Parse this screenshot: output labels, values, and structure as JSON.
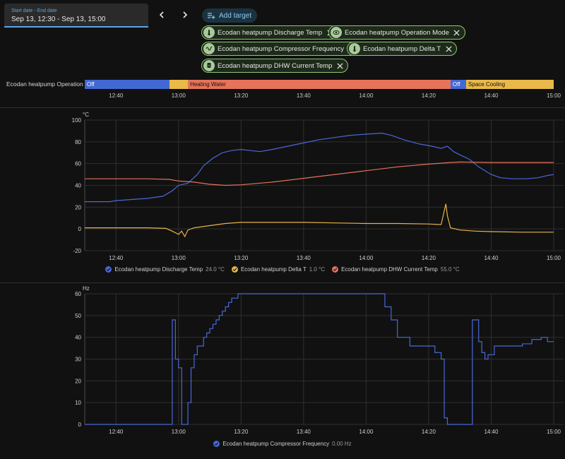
{
  "date_picker": {
    "label": "Start date - End date",
    "value": "Sep 13, 12:30 - Sep 13, 15:00"
  },
  "toolbar": {
    "add_target_label": "Add target"
  },
  "targets": [
    {
      "label": "Ecodan heatpump Discharge Temp",
      "icon": "thermometer-icon"
    },
    {
      "label": "Ecodan heatpump Operation Mode",
      "icon": "eye-icon"
    },
    {
      "label": "Ecodan heatpump Compressor Frequency",
      "icon": "sine-wave-icon"
    },
    {
      "label": "Ecodan heatpump Delta T",
      "icon": "thermometer-icon"
    },
    {
      "label": "Ecodan heatpump DHW Current Temp",
      "icon": "water-boiler-icon"
    }
  ],
  "timeline": {
    "entity": "Ecodan heatpump Operation Mo...",
    "segments": [
      {
        "label": "Off",
        "start": "12:30",
        "end": "12:57",
        "color": "#4268d4"
      },
      {
        "label": "",
        "start": "12:57",
        "end": "13:03",
        "color": "#e9b949"
      },
      {
        "label": "Heating Water",
        "start": "13:03",
        "end": "14:27",
        "color": "#e6735a"
      },
      {
        "label": "Off",
        "start": "14:27",
        "end": "14:32",
        "color": "#4268d4"
      },
      {
        "label": "Space Cooling",
        "start": "14:32",
        "end": "15:00",
        "color": "#e9b949"
      }
    ],
    "ticks": [
      "12:40",
      "13:00",
      "13:20",
      "13:40",
      "14:00",
      "14:20",
      "14:40",
      "15:00"
    ]
  },
  "colors": {
    "discharge": "#4a68d8",
    "delta_t": "#e6b447",
    "dhw": "#e6715a",
    "grid": "#2f2f2f"
  },
  "chart_data": [
    {
      "type": "line",
      "ylabel": "°C",
      "ylim": [
        -20,
        100
      ],
      "yticks": [
        "100",
        "80",
        "60",
        "40",
        "20",
        "0",
        "-20"
      ],
      "xlim": [
        "12:30",
        "15:00"
      ],
      "xticks": [
        "12:40",
        "13:00",
        "13:20",
        "13:40",
        "14:00",
        "14:20",
        "14:40",
        "15:00"
      ],
      "series": [
        {
          "name": "Ecodan heatpump Discharge Temp",
          "current": "24.0 °C",
          "color": "#4a68d8",
          "points": [
            [
              "12:30",
              25
            ],
            [
              "12:38",
              25
            ],
            [
              "12:40",
              26
            ],
            [
              "12:45",
              27
            ],
            [
              "12:50",
              28
            ],
            [
              "12:55",
              30
            ],
            [
              "12:58",
              35
            ],
            [
              "13:00",
              40
            ],
            [
              "13:03",
              42
            ],
            [
              "13:06",
              50
            ],
            [
              "13:08",
              58
            ],
            [
              "13:11",
              65
            ],
            [
              "13:14",
              70
            ],
            [
              "13:17",
              72
            ],
            [
              "13:20",
              73
            ],
            [
              "13:23",
              72
            ],
            [
              "13:26",
              71
            ],
            [
              "13:30",
              73
            ],
            [
              "13:35",
              76
            ],
            [
              "13:40",
              79
            ],
            [
              "13:45",
              82
            ],
            [
              "13:50",
              84
            ],
            [
              "13:55",
              86
            ],
            [
              "14:00",
              87
            ],
            [
              "14:05",
              88
            ],
            [
              "14:08",
              86
            ],
            [
              "14:12",
              82
            ],
            [
              "14:17",
              78
            ],
            [
              "14:21",
              76
            ],
            [
              "14:24",
              74
            ],
            [
              "14:26",
              76
            ],
            [
              "14:28",
              71
            ],
            [
              "14:30",
              68
            ],
            [
              "14:33",
              64
            ],
            [
              "14:36",
              57
            ],
            [
              "14:40",
              50
            ],
            [
              "14:43",
              47
            ],
            [
              "14:47",
              46
            ],
            [
              "14:51",
              46
            ],
            [
              "14:55",
              47
            ],
            [
              "14:58",
              49
            ],
            [
              "15:00",
              50
            ]
          ]
        },
        {
          "name": "Ecodan heatpump Delta T",
          "current": "1.0 °C",
          "color": "#e6b447",
          "points": [
            [
              "12:30",
              1
            ],
            [
              "12:40",
              1
            ],
            [
              "12:50",
              1
            ],
            [
              "12:56",
              0.5
            ],
            [
              "12:58",
              -2
            ],
            [
              "13:00",
              -5
            ],
            [
              "13:01",
              -2
            ],
            [
              "13:02",
              -7
            ],
            [
              "13:03",
              -1
            ],
            [
              "13:05",
              1
            ],
            [
              "13:10",
              3
            ],
            [
              "13:15",
              5
            ],
            [
              "13:20",
              6
            ],
            [
              "13:30",
              6
            ],
            [
              "13:40",
              6
            ],
            [
              "13:50",
              5.5
            ],
            [
              "14:00",
              5
            ],
            [
              "14:10",
              5
            ],
            [
              "14:20",
              4.5
            ],
            [
              "14:24",
              4
            ],
            [
              "14:25.5",
              23
            ],
            [
              "14:26",
              12
            ],
            [
              "14:27",
              1
            ],
            [
              "14:30",
              -1
            ],
            [
              "14:35",
              -2
            ],
            [
              "14:40",
              -2.5
            ],
            [
              "14:50",
              -3
            ],
            [
              "15:00",
              -3
            ]
          ]
        },
        {
          "name": "Ecodan heatpump DHW Current Temp",
          "current": "55.0 °C",
          "color": "#e6715a",
          "points": [
            [
              "12:30",
              46
            ],
            [
              "12:40",
              46
            ],
            [
              "12:50",
              46
            ],
            [
              "12:57",
              45.5
            ],
            [
              "13:00",
              44
            ],
            [
              "13:05",
              43
            ],
            [
              "13:10",
              41
            ],
            [
              "13:15",
              40
            ],
            [
              "13:20",
              40.5
            ],
            [
              "13:30",
              43
            ],
            [
              "13:40",
              46.5
            ],
            [
              "13:50",
              50
            ],
            [
              "14:00",
              53.5
            ],
            [
              "14:10",
              57
            ],
            [
              "14:20",
              59.5
            ],
            [
              "14:27",
              61
            ],
            [
              "14:30",
              61.5
            ],
            [
              "14:40",
              61
            ],
            [
              "14:50",
              61
            ],
            [
              "15:00",
              61
            ]
          ]
        }
      ]
    },
    {
      "type": "line",
      "ylabel": "Hz",
      "ylim": [
        0,
        60
      ],
      "yticks": [
        "60",
        "50",
        "40",
        "30",
        "20",
        "10",
        "0"
      ],
      "xlim": [
        "12:30",
        "15:00"
      ],
      "xticks": [
        "12:40",
        "13:00",
        "13:20",
        "13:40",
        "14:00",
        "14:20",
        "14:40",
        "15:00"
      ],
      "series": [
        {
          "name": "Ecodan heatpump Compressor Frequency",
          "current": "0.00 Hz",
          "color": "#4a68d8",
          "steps": [
            [
              "12:30",
              0
            ],
            [
              "12:58",
              48
            ],
            [
              "12:59",
              30
            ],
            [
              "13:00",
              26
            ],
            [
              "13:01",
              0
            ],
            [
              "13:03",
              10
            ],
            [
              "13:04",
              26
            ],
            [
              "13:05",
              32
            ],
            [
              "13:06",
              36
            ],
            [
              "13:08",
              40
            ],
            [
              "13:09",
              42
            ],
            [
              "13:10",
              44
            ],
            [
              "13:11",
              46
            ],
            [
              "13:12",
              48
            ],
            [
              "13:13",
              50
            ],
            [
              "13:14",
              52
            ],
            [
              "13:15",
              54
            ],
            [
              "13:16",
              56
            ],
            [
              "13:17",
              58
            ],
            [
              "13:19",
              60
            ],
            [
              "14:06",
              54
            ],
            [
              "14:08",
              48
            ],
            [
              "14:10",
              40
            ],
            [
              "14:14",
              36
            ],
            [
              "14:22",
              33
            ],
            [
              "14:24",
              30
            ],
            [
              "14:25",
              3
            ],
            [
              "14:26",
              0
            ],
            [
              "14:33",
              0
            ],
            [
              "14:34",
              48
            ],
            [
              "14:36",
              38
            ],
            [
              "14:37",
              33
            ],
            [
              "14:38",
              30
            ],
            [
              "14:39",
              32
            ],
            [
              "14:41",
              36
            ],
            [
              "14:50",
              37
            ],
            [
              "14:53",
              39
            ],
            [
              "14:56",
              40
            ],
            [
              "14:58",
              38
            ],
            [
              "15:00",
              38
            ]
          ]
        }
      ]
    }
  ]
}
